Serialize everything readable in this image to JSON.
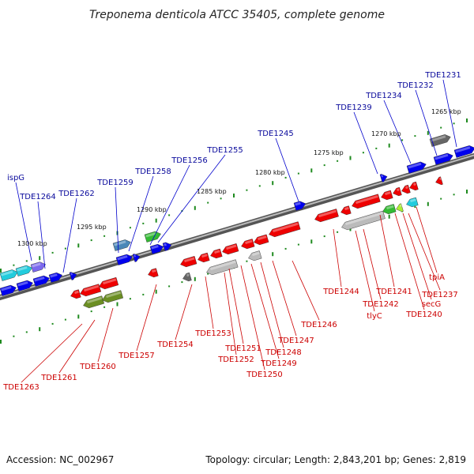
{
  "title": "Treponema denticola ATCC 35405, complete genome",
  "footer": {
    "accession": "Accession: NC_002967",
    "summary": "Topology: circular; Length: 2,843,201 bp; Genes: 2,819"
  },
  "scale_ticks": [
    "1265 kbp",
    "1270 kbp",
    "1275 kbp",
    "1280 kbp",
    "1285 kbp",
    "1290 kbp",
    "1295 kbp",
    "1300 kbp"
  ],
  "forward_genes": [
    "TDE1231",
    "TDE1232",
    "TDE1234",
    "TDE1239",
    "TDE1245",
    "TDE1255",
    "TDE1256",
    "TDE1258",
    "TDE1259",
    "TDE1262",
    "TDE1264",
    "ispG"
  ],
  "reverse_genes": [
    "tpiA",
    "TDE1237",
    "secG",
    "TDE1240",
    "TDE1241",
    "TDE1242",
    "tlyC",
    "TDE1244",
    "TDE1246",
    "TDE1247",
    "TDE1248",
    "TDE1249",
    "TDE1250",
    "TDE1251",
    "TDE1252",
    "TDE1253",
    "TDE1254",
    "TDE1257",
    "TDE1260",
    "TDE1261",
    "TDE1263"
  ],
  "colors": {
    "forward": "#0000ee",
    "reverse": "#ee0000",
    "forward_label": "#0a0a9c",
    "reverse_label": "#cc0000",
    "backbone": "#888888",
    "dots": "#22aa22",
    "gray_gene": "#bbbbbb",
    "dark_gene": "#666666",
    "olive_gene": "#6b8e23",
    "green_gene": "#33bb33",
    "cyan_gene": "#22ccdd",
    "steel_gene": "#4a87b8",
    "purple_gene": "#7b68ee"
  }
}
